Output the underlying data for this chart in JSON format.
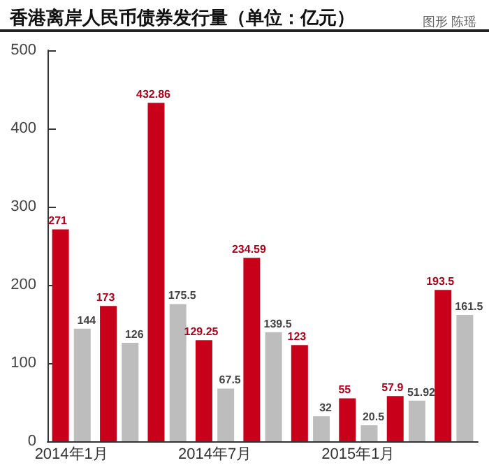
{
  "chart_data": {
    "type": "bar",
    "title": "香港离岸人民币债券发行量（单位：亿元）",
    "annotations": [
      "图形 陈瑶"
    ],
    "categories": [
      "2014年1月",
      null,
      null,
      "2014年7月",
      null,
      null,
      "2015年1月",
      null,
      null
    ],
    "series": [
      {
        "color": "#c8001a",
        "values": [
          271,
          173,
          432.86,
          129.25,
          234.59,
          123,
          55,
          57.9,
          193.5
        ]
      },
      {
        "color": "#bdbdbd",
        "values": [
          144,
          126,
          175.5,
          67.5,
          139.5,
          32,
          20.5,
          51.92,
          161.5
        ]
      }
    ],
    "ylim": [
      0,
      500
    ],
    "yticks": [
      0,
      100,
      200,
      300,
      400,
      500
    ],
    "grid": false,
    "data_labels": true
  }
}
